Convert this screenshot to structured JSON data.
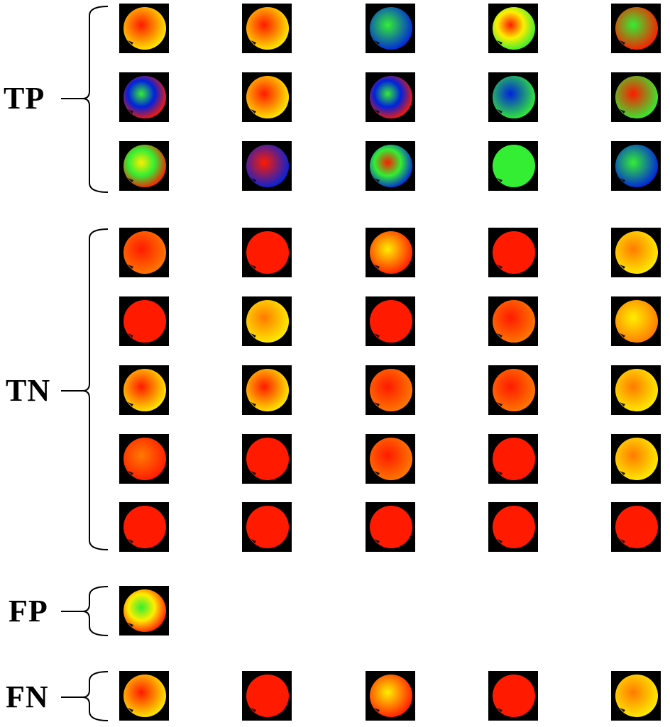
{
  "groups": [
    {
      "label": "TP",
      "rows": [
        [
          "red-yellow",
          "red-yellow",
          "green-blue",
          "red-yellow-green",
          "green-red"
        ],
        [
          "green-blue-red",
          "red-yellow",
          "green-blue-red",
          "blue-green",
          "red-green"
        ],
        [
          "yellow-green-red",
          "red-blue",
          "red-green-blue",
          "green",
          "green-blue"
        ]
      ]
    },
    {
      "label": "TN",
      "rows": [
        [
          "red-orange",
          "red",
          "yellow-red",
          "red",
          "orange-yellow"
        ],
        [
          "red",
          "orange-yellow",
          "red",
          "red-orange",
          "yellow-orange"
        ],
        [
          "red-yellow",
          "red-yellow",
          "red-orange",
          "red-orange",
          "orange-yellow"
        ],
        [
          "orange-red",
          "red",
          "red-orange",
          "red",
          "orange-yellow"
        ],
        [
          "red",
          "red",
          "red",
          "red",
          "red"
        ]
      ]
    },
    {
      "label": "FP",
      "rows": [
        [
          "green-yellow-red"
        ]
      ]
    },
    {
      "label": "FN",
      "rows": [
        [
          "red-yellow",
          "red",
          "yellow-red",
          "red",
          "orange-yellow"
        ]
      ]
    }
  ],
  "colors": {
    "red": "#ff1a00",
    "orange": "#ff7a00",
    "yellow": "#ffee00",
    "green": "#33ee33",
    "blue": "#0022dd",
    "frame": "#000000"
  }
}
